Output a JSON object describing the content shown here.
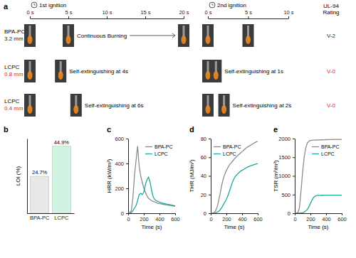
{
  "chart_data": [
    {
      "type": "photo_grid",
      "label": "a",
      "rating_title": [
        "UL-94",
        "Rating"
      ],
      "ignitions": [
        {
          "title": "1st ignition",
          "xlim": [
            0,
            20
          ],
          "xticks": [
            {
              "value": 0,
              "label": "0 s"
            },
            {
              "value": 5,
              "label": "5 s"
            },
            {
              "value": 10,
              "label": "10 s"
            },
            {
              "value": 15,
              "label": "15 s"
            },
            {
              "value": 20,
              "label": "20 s"
            }
          ]
        },
        {
          "title": "2nd ignition",
          "xlim": [
            0,
            10
          ],
          "xticks": [
            {
              "value": 0,
              "label": "0 s"
            },
            {
              "value": 5,
              "label": "5 s"
            },
            {
              "value": 10,
              "label": "10 s"
            }
          ]
        }
      ],
      "rows": [
        {
          "sample": "BPA-PC",
          "thickness": "3.2 mm",
          "rating": "V-2",
          "color": "#222222",
          "photos": [
            [
              0,
              5,
              20
            ],
            [
              0,
              5
            ]
          ],
          "annotations": [
            "Continuous Burning",
            null
          ]
        },
        {
          "sample": "LCPC",
          "thickness": "0.8 mm",
          "rating": "V-0",
          "color": "#e0211b",
          "photos": [
            [
              0,
              4
            ],
            [
              0,
              1
            ]
          ],
          "annotations": [
            "Self-extinguishing at 4s",
            "Self-extinguishing at 1s"
          ]
        },
        {
          "sample": "LCPC",
          "thickness": "0.4 mm",
          "rating": "V-0",
          "color": "#e0211b",
          "photos": [
            [
              0,
              6
            ],
            [
              0,
              2
            ]
          ],
          "annotations": [
            "Self-extinguishing at 6s",
            "Self-extinguishing at 2s"
          ]
        }
      ]
    },
    {
      "type": "bar",
      "label": "b",
      "y_label": "LOI (%)",
      "categories": [
        "BPA-PC",
        "LCPC"
      ],
      "values": [
        24.7,
        44.9
      ],
      "value_labels": [
        "24.7%",
        "44.9%"
      ],
      "data_labels": true,
      "colors": [
        "#e8e8e8",
        "#d2f3e2"
      ],
      "ylim": [
        0,
        50
      ],
      "tick_labels": "x"
    },
    {
      "type": "line",
      "label": "c",
      "x_label": "Time (s)",
      "y_label": "HRR (kW/m²)",
      "xlim": [
        0,
        600
      ],
      "xticks": [
        0,
        200,
        400,
        600
      ],
      "ylim": [
        0,
        600
      ],
      "yticks": [
        0,
        200,
        400,
        600
      ],
      "legend": "upper right",
      "x": [
        0,
        20,
        40,
        60,
        80,
        100,
        120,
        140,
        160,
        180,
        200,
        220,
        240,
        260,
        280,
        300,
        320,
        340,
        360,
        380,
        400,
        420,
        440,
        460,
        480,
        500,
        520,
        540,
        560,
        580,
        600
      ],
      "series": [
        {
          "name": "BPA-PC",
          "color": "#8c8c8c",
          "values": [
            0,
            5,
            20,
            120,
            300,
            420,
            540,
            380,
            300,
            250,
            200,
            170,
            140,
            120,
            110,
            100,
            95,
            90,
            85,
            80,
            78,
            75,
            72,
            70,
            68,
            66,
            64,
            62,
            60,
            58,
            55
          ]
        },
        {
          "name": "LCPC",
          "color": "#1aa99a",
          "values": [
            0,
            0,
            5,
            20,
            40,
            60,
            100,
            150,
            160,
            150,
            170,
            230,
            270,
            290,
            250,
            180,
            130,
            110,
            100,
            95,
            90,
            85,
            80,
            78,
            75,
            72,
            70,
            68,
            65,
            62,
            60
          ]
        }
      ]
    },
    {
      "type": "line",
      "label": "d",
      "x_label": "Time (s)",
      "y_label": "THR (MJ/m²)",
      "xlim": [
        0,
        600
      ],
      "xticks": [
        0,
        200,
        400,
        600
      ],
      "ylim": [
        0,
        80
      ],
      "yticks": [
        0,
        20,
        40,
        60,
        80
      ],
      "legend": "upper left",
      "x": [
        0,
        20,
        40,
        60,
        80,
        100,
        120,
        140,
        160,
        180,
        200,
        220,
        240,
        260,
        280,
        300,
        320,
        340,
        360,
        380,
        400,
        420,
        440,
        460,
        480,
        500,
        520,
        540,
        560,
        580,
        600
      ],
      "series": [
        {
          "name": "BPA-PC",
          "color": "#8c8c8c",
          "values": [
            0,
            0,
            0.5,
            2,
            6,
            13,
            21,
            30,
            37,
            42,
            46,
            49,
            52,
            54,
            56,
            58,
            60,
            61.5,
            63,
            64.5,
            66,
            67.5,
            69,
            70.5,
            71.5,
            72.5,
            73.5,
            74.5,
            75.5,
            76.5,
            77
          ]
        },
        {
          "name": "LCPC",
          "color": "#1aa99a",
          "values": [
            0,
            0,
            0,
            0.3,
            1,
            2,
            3.5,
            6,
            9,
            12,
            15,
            19,
            24,
            29,
            34,
            37.5,
            40,
            42,
            43.5,
            45,
            46,
            47,
            48,
            49,
            49.8,
            50.5,
            51.2,
            51.8,
            52.3,
            52.8,
            53
          ]
        }
      ]
    },
    {
      "type": "line",
      "label": "e",
      "x_label": "Time (s)",
      "y_label": "TSR (m²/m²)",
      "xlim": [
        0,
        600
      ],
      "xticks": [
        0,
        200,
        400,
        600
      ],
      "ylim": [
        0,
        2000
      ],
      "yticks": [
        0,
        500,
        1000,
        1500,
        2000
      ],
      "legend": "upper right",
      "x": [
        0,
        20,
        40,
        60,
        80,
        100,
        120,
        140,
        160,
        180,
        200,
        220,
        240,
        260,
        280,
        300,
        320,
        340,
        360,
        380,
        400,
        420,
        440,
        460,
        480,
        500,
        520,
        540,
        560,
        580,
        600
      ],
      "series": [
        {
          "name": "BPA-PC",
          "color": "#8c8c8c",
          "values": [
            0,
            0,
            20,
            150,
            600,
            1100,
            1500,
            1750,
            1880,
            1930,
            1950,
            1955,
            1958,
            1960,
            1962,
            1964,
            1966,
            1967,
            1968,
            1970,
            1971,
            1972,
            1973,
            1974,
            1975,
            1976,
            1977,
            1978,
            1979,
            1979,
            1980
          ]
        },
        {
          "name": "LCPC",
          "color": "#1aa99a",
          "values": [
            0,
            0,
            0,
            0,
            5,
            10,
            30,
            60,
            100,
            170,
            260,
            350,
            420,
            460,
            475,
            480,
            480,
            481,
            481,
            482,
            482,
            483,
            483,
            483,
            484,
            484,
            484,
            485,
            485,
            485,
            485
          ]
        }
      ]
    }
  ]
}
